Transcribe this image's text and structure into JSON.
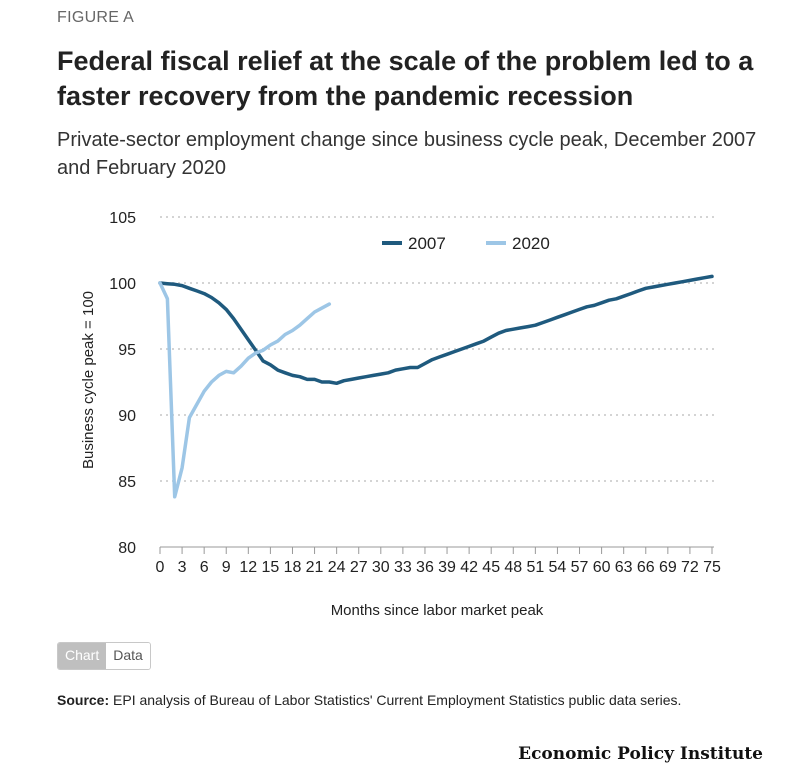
{
  "header": {
    "figure_label": "FIGURE A",
    "title": "Federal fiscal relief at the scale of the problem led to a faster recovery from the pandemic recession",
    "subtitle": "Private-sector employment change since business cycle peak, December 2007 and February 2020"
  },
  "toggle": {
    "chart_label": "Chart",
    "data_label": "Data"
  },
  "source": {
    "label": "Source:",
    "text": " EPI analysis of Bureau of Labor Statistics' Current Employment Statistics public data series."
  },
  "brand": "Economic Policy Institute",
  "chart_data": {
    "type": "line",
    "title": "",
    "xlabel": "Months since labor market peak",
    "ylabel": "Business cycle peak = 100",
    "xlim": [
      0,
      75
    ],
    "ylim": [
      80,
      105
    ],
    "xticks": [
      0,
      3,
      6,
      9,
      12,
      15,
      18,
      21,
      24,
      27,
      30,
      33,
      36,
      39,
      42,
      45,
      48,
      51,
      54,
      57,
      60,
      63,
      66,
      69,
      72,
      75
    ],
    "yticks": [
      80,
      85,
      90,
      95,
      100,
      105
    ],
    "grid": true,
    "legend_position": "top",
    "series": [
      {
        "name": "2007",
        "color": "#1f5a7e",
        "x": [
          0,
          1,
          2,
          3,
          4,
          5,
          6,
          7,
          8,
          9,
          10,
          11,
          12,
          13,
          14,
          15,
          16,
          17,
          18,
          19,
          20,
          21,
          22,
          23,
          24,
          25,
          26,
          27,
          28,
          29,
          30,
          31,
          32,
          33,
          34,
          35,
          36,
          37,
          38,
          39,
          40,
          41,
          42,
          43,
          44,
          45,
          46,
          47,
          48,
          49,
          50,
          51,
          52,
          53,
          54,
          55,
          56,
          57,
          58,
          59,
          60,
          61,
          62,
          63,
          64,
          65,
          66,
          67,
          68,
          69,
          70,
          71,
          72,
          73,
          74,
          75
        ],
        "values": [
          100,
          99.95,
          99.9,
          99.8,
          99.6,
          99.4,
          99.2,
          98.9,
          98.5,
          98.0,
          97.3,
          96.5,
          95.7,
          94.9,
          94.1,
          93.8,
          93.4,
          93.2,
          93.0,
          92.9,
          92.7,
          92.7,
          92.5,
          92.5,
          92.4,
          92.6,
          92.7,
          92.8,
          92.9,
          93.0,
          93.1,
          93.2,
          93.4,
          93.5,
          93.6,
          93.6,
          93.9,
          94.2,
          94.4,
          94.6,
          94.8,
          95.0,
          95.2,
          95.4,
          95.6,
          95.9,
          96.2,
          96.4,
          96.5,
          96.6,
          96.7,
          96.8,
          97.0,
          97.2,
          97.4,
          97.6,
          97.8,
          98.0,
          98.2,
          98.3,
          98.5,
          98.7,
          98.8,
          99.0,
          99.2,
          99.4,
          99.6,
          99.7,
          99.8,
          99.9,
          100.0,
          100.1,
          100.2,
          100.3,
          100.4,
          100.5
        ]
      },
      {
        "name": "2020",
        "color": "#9dc6e6",
        "x": [
          0,
          1,
          2,
          3,
          4,
          5,
          6,
          7,
          8,
          9,
          10,
          11,
          12,
          13,
          14,
          15,
          16,
          17,
          18,
          19,
          20,
          21,
          22,
          23
        ],
        "values": [
          100,
          98.8,
          83.8,
          86.0,
          89.8,
          90.8,
          91.8,
          92.5,
          93.0,
          93.3,
          93.2,
          93.7,
          94.3,
          94.7,
          94.9,
          95.3,
          95.6,
          96.1,
          96.4,
          96.8,
          97.3,
          97.8,
          98.1,
          98.4
        ]
      }
    ]
  }
}
